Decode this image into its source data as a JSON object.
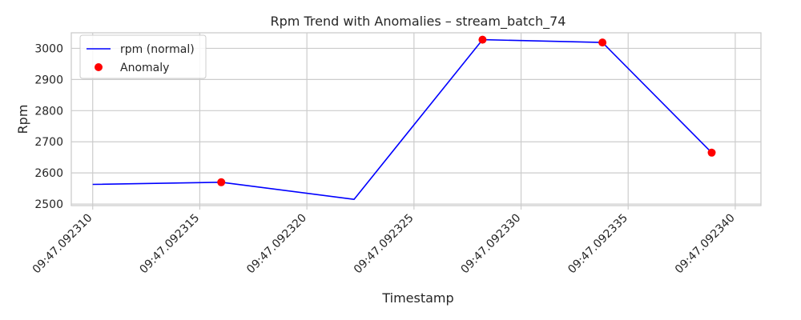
{
  "chart_data": {
    "type": "line",
    "title": "Rpm Trend with Anomalies – stream_batch_74",
    "xlabel": "Timestamp",
    "ylabel": "Rpm",
    "xlim": [
      9.092309,
      9.0923412
    ],
    "ylim": [
      2495,
      3050
    ],
    "x_ticks": [
      9.09231,
      9.092315,
      9.09232,
      9.092325,
      9.09233,
      9.092335,
      9.09234
    ],
    "x_tick_labels": [
      "09:47.092310",
      "09:47.092315",
      "09:47.092320",
      "09:47.092325",
      "09:47.092330",
      "09:47.092335",
      "09:47.092340"
    ],
    "y_ticks": [
      2500,
      2600,
      2700,
      2800,
      2900,
      3000
    ],
    "y_tick_labels": [
      "2500",
      "2600",
      "2700",
      "2800",
      "2900",
      "3000"
    ],
    "grid": true,
    "legend_position": "top-left",
    "series": [
      {
        "name": "rpm (normal)",
        "kind": "line",
        "color": "#0000ff",
        "x": [
          9.09231,
          9.092316,
          9.0923222,
          9.0923282,
          9.0923338,
          9.0923389
        ],
        "y": [
          2563,
          2570,
          2515,
          3028,
          3019,
          2665
        ]
      },
      {
        "name": "Anomaly",
        "kind": "scatter",
        "color": "#ff0000",
        "x": [
          9.092316,
          9.0923282,
          9.0923338,
          9.0923389
        ],
        "y": [
          2570,
          3028,
          3019,
          2665
        ]
      }
    ]
  }
}
